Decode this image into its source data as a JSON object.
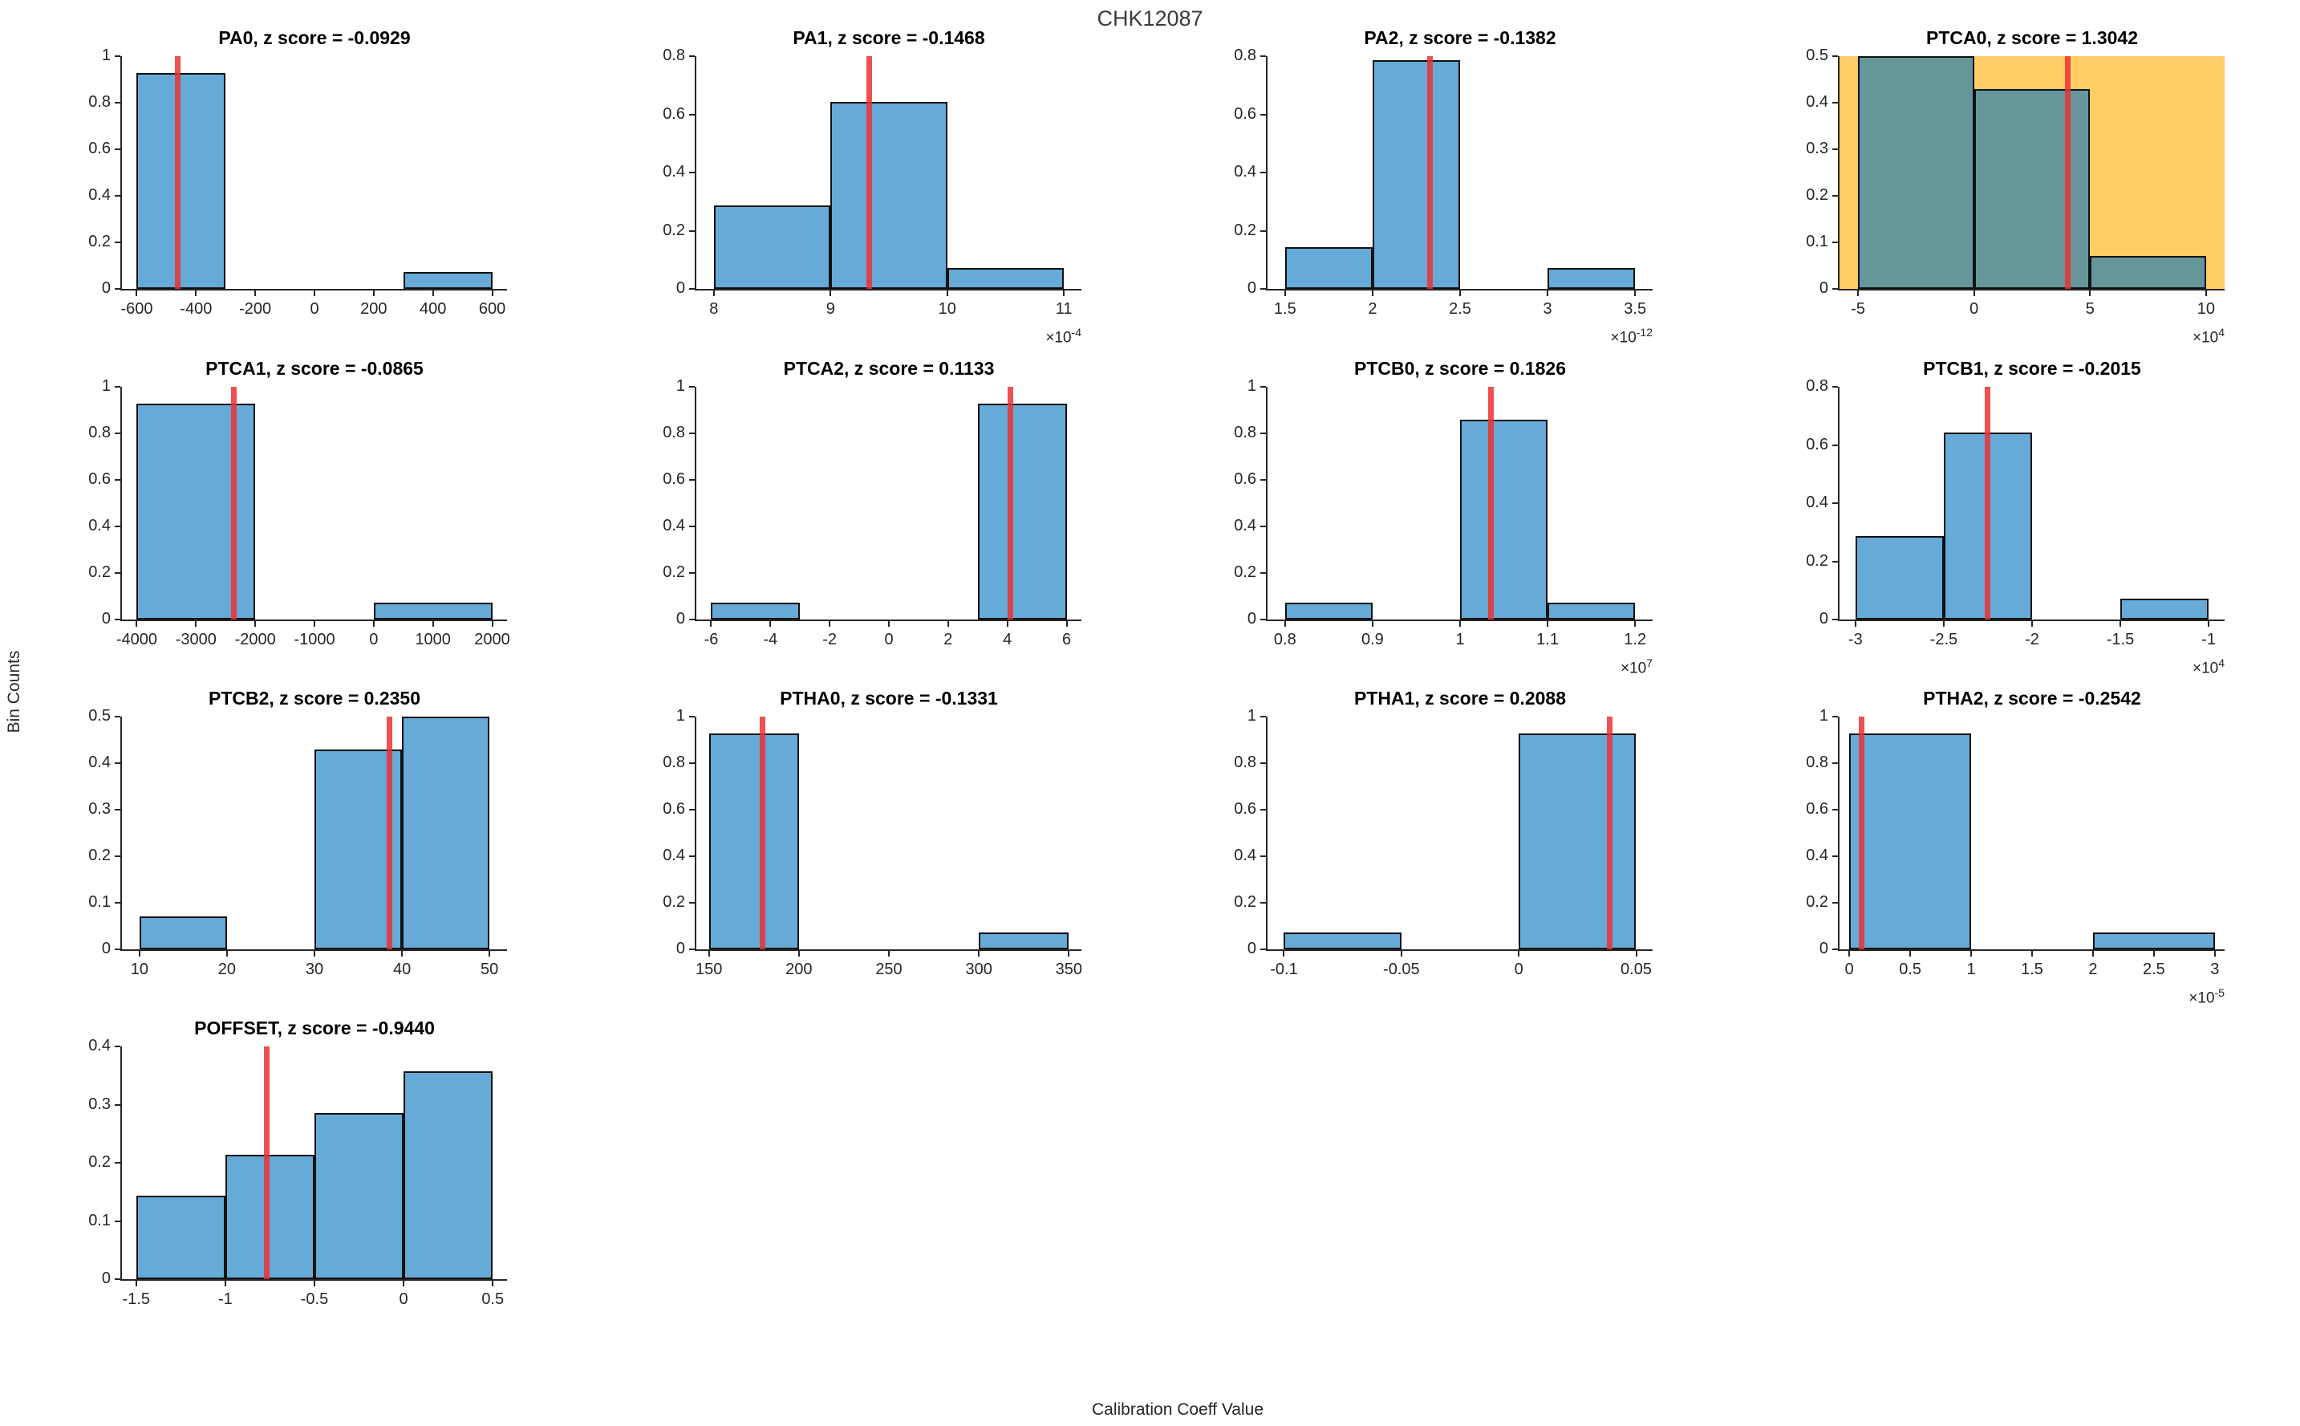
{
  "figure": {
    "title": "CHK12087",
    "xlabel": "Calibration Coeff Value",
    "ylabel": "Bin Counts"
  },
  "colors": {
    "bar_fill": "rgba(0,114,189,0.6)",
    "bar_edge": "#111111",
    "red_line": "rgba(235,50,50,0.85)",
    "highlight_bg": "#FFCC66",
    "axis": "#262626"
  },
  "chart_data": [
    {
      "type": "bar",
      "name": "PA0",
      "title": "PA0, z score = -0.0929",
      "z_score": -0.0929,
      "xlim": [
        -650,
        650
      ],
      "ylim": [
        0,
        1
      ],
      "xticks": [
        -600,
        -400,
        -200,
        0,
        200,
        400,
        600
      ],
      "xtick_labels": [
        "-600",
        "-400",
        "-200",
        "0",
        "200",
        "400",
        "600"
      ],
      "yticks": [
        0,
        0.2,
        0.4,
        0.6,
        0.8,
        1
      ],
      "ytick_labels": [
        "0",
        "0.2",
        "0.4",
        "0.6",
        "0.8",
        "1"
      ],
      "bins": [
        {
          "x0": -600,
          "x1": -300,
          "h": 0.9286
        },
        {
          "x0": 300,
          "x1": 600,
          "h": 0.0714
        }
      ],
      "red_line_x": -462,
      "exponent": null,
      "highlighted": false
    },
    {
      "type": "bar",
      "name": "PA1",
      "title": "PA1, z score = -0.1468",
      "z_score": -0.1468,
      "xlim": [
        7.85,
        11.15
      ],
      "ylim": [
        0,
        0.8
      ],
      "xticks": [
        8,
        9,
        10,
        11
      ],
      "xtick_labels": [
        "8",
        "9",
        "10",
        "11"
      ],
      "yticks": [
        0,
        0.2,
        0.4,
        0.6,
        0.8
      ],
      "ytick_labels": [
        "0",
        "0.2",
        "0.4",
        "0.6",
        "0.8"
      ],
      "bins": [
        {
          "x0": 8,
          "x1": 9,
          "h": 0.2857
        },
        {
          "x0": 9,
          "x1": 10,
          "h": 0.6429
        },
        {
          "x0": 10,
          "x1": 11,
          "h": 0.0714
        }
      ],
      "red_line_x": 9.33,
      "exponent": "-4",
      "highlighted": false
    },
    {
      "type": "bar",
      "name": "PA2",
      "title": "PA2, z score = -0.1382",
      "z_score": -0.1382,
      "xlim": [
        1.4,
        3.6
      ],
      "ylim": [
        0,
        0.8
      ],
      "xticks": [
        1.5,
        2,
        2.5,
        3,
        3.5
      ],
      "xtick_labels": [
        "1.5",
        "2",
        "2.5",
        "3",
        "3.5"
      ],
      "yticks": [
        0,
        0.2,
        0.4,
        0.6,
        0.8
      ],
      "ytick_labels": [
        "0",
        "0.2",
        "0.4",
        "0.6",
        "0.8"
      ],
      "bins": [
        {
          "x0": 1.5,
          "x1": 2,
          "h": 0.1429
        },
        {
          "x0": 2,
          "x1": 2.5,
          "h": 0.7857
        },
        {
          "x0": 3,
          "x1": 3.5,
          "h": 0.0714
        }
      ],
      "red_line_x": 2.33,
      "exponent": "-12",
      "highlighted": false
    },
    {
      "type": "bar",
      "name": "PTCA0",
      "title": "PTCA0, z score = 1.3042",
      "z_score": 1.3042,
      "xlim": [
        -5.8,
        10.8
      ],
      "ylim": [
        0,
        0.5
      ],
      "xticks": [
        -5,
        0,
        5,
        10
      ],
      "xtick_labels": [
        "-5",
        "0",
        "5",
        "10"
      ],
      "yticks": [
        0,
        0.1,
        0.2,
        0.3,
        0.4,
        0.5
      ],
      "ytick_labels": [
        "0",
        "0.1",
        "0.2",
        "0.3",
        "0.4",
        "0.5"
      ],
      "bins": [
        {
          "x0": -5,
          "x1": 0,
          "h": 0.5
        },
        {
          "x0": 0,
          "x1": 5,
          "h": 0.4286
        },
        {
          "x0": 5,
          "x1": 10,
          "h": 0.0714
        }
      ],
      "red_line_x": 4.05,
      "exponent": "4",
      "highlighted": true
    },
    {
      "type": "bar",
      "name": "PTCA1",
      "title": "PTCA1, z score = -0.0865",
      "z_score": -0.0865,
      "xlim": [
        -4250,
        2250
      ],
      "ylim": [
        0,
        1
      ],
      "xticks": [
        -4000,
        -3000,
        -2000,
        -1000,
        0,
        1000,
        2000
      ],
      "xtick_labels": [
        "-4000",
        "-3000",
        "-2000",
        "-1000",
        "0",
        "1000",
        "2000"
      ],
      "yticks": [
        0,
        0.2,
        0.4,
        0.6,
        0.8,
        1
      ],
      "ytick_labels": [
        "0",
        "0.2",
        "0.4",
        "0.6",
        "0.8",
        "1"
      ],
      "bins": [
        {
          "x0": -4000,
          "x1": -2000,
          "h": 0.9286
        },
        {
          "x0": 0,
          "x1": 2000,
          "h": 0.0714
        }
      ],
      "red_line_x": -2360,
      "exponent": null,
      "highlighted": false
    },
    {
      "type": "bar",
      "name": "PTCA2",
      "title": "PTCA2, z score = 0.1133",
      "z_score": 0.1133,
      "xlim": [
        -6.5,
        6.5
      ],
      "ylim": [
        0,
        1
      ],
      "xticks": [
        -6,
        -4,
        -2,
        0,
        2,
        4,
        6
      ],
      "xtick_labels": [
        "-6",
        "-4",
        "-2",
        "0",
        "2",
        "4",
        "6"
      ],
      "yticks": [
        0,
        0.2,
        0.4,
        0.6,
        0.8,
        1
      ],
      "ytick_labels": [
        "0",
        "0.2",
        "0.4",
        "0.6",
        "0.8",
        "1"
      ],
      "bins": [
        {
          "x0": -6,
          "x1": -3,
          "h": 0.0714
        },
        {
          "x0": 3,
          "x1": 6,
          "h": 0.9286
        }
      ],
      "red_line_x": 4.1,
      "exponent": null,
      "highlighted": false
    },
    {
      "type": "bar",
      "name": "PTCB0",
      "title": "PTCB0, z score = 0.1826",
      "z_score": 0.1826,
      "xlim": [
        0.78,
        1.22
      ],
      "ylim": [
        0,
        1
      ],
      "xticks": [
        0.8,
        0.9,
        1,
        1.1,
        1.2
      ],
      "xtick_labels": [
        "0.8",
        "0.9",
        "1",
        "1.1",
        "1.2"
      ],
      "yticks": [
        0,
        0.2,
        0.4,
        0.6,
        0.8,
        1
      ],
      "ytick_labels": [
        "0",
        "0.2",
        "0.4",
        "0.6",
        "0.8",
        "1"
      ],
      "bins": [
        {
          "x0": 0.8,
          "x1": 0.9,
          "h": 0.0714
        },
        {
          "x0": 1,
          "x1": 1.1,
          "h": 0.8571
        },
        {
          "x0": 1.1,
          "x1": 1.2,
          "h": 0.0714
        }
      ],
      "red_line_x": 1.035,
      "exponent": "7",
      "highlighted": false
    },
    {
      "type": "bar",
      "name": "PTCB1",
      "title": "PTCB1, z score = -0.2015",
      "z_score": -0.2015,
      "xlim": [
        -3.09,
        -0.91
      ],
      "ylim": [
        0,
        0.8
      ],
      "xticks": [
        -3,
        -2.5,
        -2,
        -1.5,
        -1
      ],
      "xtick_labels": [
        "-3",
        "-2.5",
        "-2",
        "-1.5",
        "-1"
      ],
      "yticks": [
        0,
        0.2,
        0.4,
        0.6,
        0.8
      ],
      "ytick_labels": [
        "0",
        "0.2",
        "0.4",
        "0.6",
        "0.8"
      ],
      "bins": [
        {
          "x0": -3,
          "x1": -2.5,
          "h": 0.2857
        },
        {
          "x0": -2.5,
          "x1": -2,
          "h": 0.6429
        },
        {
          "x0": -1.5,
          "x1": -1,
          "h": 0.0714
        }
      ],
      "red_line_x": -2.25,
      "exponent": "4",
      "highlighted": false
    },
    {
      "type": "bar",
      "name": "PTCB2",
      "title": "PTCB2, z score = 0.2350",
      "z_score": 0.235,
      "xlim": [
        8,
        52
      ],
      "ylim": [
        0,
        0.5
      ],
      "xticks": [
        10,
        20,
        30,
        40,
        50
      ],
      "xtick_labels": [
        "10",
        "20",
        "30",
        "40",
        "50"
      ],
      "yticks": [
        0,
        0.1,
        0.2,
        0.3,
        0.4,
        0.5
      ],
      "ytick_labels": [
        "0",
        "0.1",
        "0.2",
        "0.3",
        "0.4",
        "0.5"
      ],
      "bins": [
        {
          "x0": 10,
          "x1": 20,
          "h": 0.0714
        },
        {
          "x0": 30,
          "x1": 40,
          "h": 0.4286
        },
        {
          "x0": 40,
          "x1": 50,
          "h": 0.5
        }
      ],
      "red_line_x": 38.6,
      "exponent": null,
      "highlighted": false
    },
    {
      "type": "bar",
      "name": "PTHA0",
      "title": "PTHA0, z score = -0.1331",
      "z_score": -0.1331,
      "xlim": [
        143,
        357
      ],
      "ylim": [
        0,
        1
      ],
      "xticks": [
        150,
        200,
        250,
        300,
        350
      ],
      "xtick_labels": [
        "150",
        "200",
        "250",
        "300",
        "350"
      ],
      "yticks": [
        0,
        0.2,
        0.4,
        0.6,
        0.8,
        1
      ],
      "ytick_labels": [
        "0",
        "0.2",
        "0.4",
        "0.6",
        "0.8",
        "1"
      ],
      "bins": [
        {
          "x0": 150,
          "x1": 200,
          "h": 0.9286
        },
        {
          "x0": 300,
          "x1": 350,
          "h": 0.0714
        }
      ],
      "red_line_x": 180,
      "exponent": null,
      "highlighted": false
    },
    {
      "type": "bar",
      "name": "PTHA1",
      "title": "PTHA1, z score = 0.2088",
      "z_score": 0.2088,
      "xlim": [
        -0.107,
        0.057
      ],
      "ylim": [
        0,
        1
      ],
      "xticks": [
        -0.1,
        -0.05,
        0,
        0.05
      ],
      "xtick_labels": [
        "-0.1",
        "-0.05",
        "0",
        "0.05"
      ],
      "yticks": [
        0,
        0.2,
        0.4,
        0.6,
        0.8,
        1
      ],
      "ytick_labels": [
        "0",
        "0.2",
        "0.4",
        "0.6",
        "0.8",
        "1"
      ],
      "bins": [
        {
          "x0": -0.1,
          "x1": -0.05,
          "h": 0.0714
        },
        {
          "x0": 0,
          "x1": 0.05,
          "h": 0.9286
        }
      ],
      "red_line_x": 0.0386,
      "exponent": null,
      "highlighted": false
    },
    {
      "type": "bar",
      "name": "PTHA2",
      "title": "PTHA2, z score = -0.2542",
      "z_score": -0.2542,
      "xlim": [
        -0.08,
        3.08
      ],
      "ylim": [
        0,
        1
      ],
      "xticks": [
        0,
        0.5,
        1,
        1.5,
        2,
        2.5,
        3
      ],
      "xtick_labels": [
        "0",
        "0.5",
        "1",
        "1.5",
        "2",
        "2.5",
        "3"
      ],
      "yticks": [
        0,
        0.2,
        0.4,
        0.6,
        0.8,
        1
      ],
      "ytick_labels": [
        "0",
        "0.2",
        "0.4",
        "0.6",
        "0.8",
        "1"
      ],
      "bins": [
        {
          "x0": 0,
          "x1": 1,
          "h": 0.9286
        },
        {
          "x0": 2,
          "x1": 3,
          "h": 0.0714
        }
      ],
      "red_line_x": 0.1,
      "exponent": "-5",
      "highlighted": false
    },
    {
      "type": "bar",
      "name": "POFFSET",
      "title": "POFFSET, z score = -0.9440",
      "z_score": -0.944,
      "xlim": [
        -1.58,
        0.58
      ],
      "ylim": [
        0,
        0.4
      ],
      "xticks": [
        -1.5,
        -1,
        -0.5,
        0,
        0.5
      ],
      "xtick_labels": [
        "-1.5",
        "-1",
        "-0.5",
        "0",
        "0.5"
      ],
      "yticks": [
        0,
        0.1,
        0.2,
        0.3,
        0.4
      ],
      "ytick_labels": [
        "0",
        "0.1",
        "0.2",
        "0.3",
        "0.4"
      ],
      "bins": [
        {
          "x0": -1.5,
          "x1": -1,
          "h": 0.1429
        },
        {
          "x0": -1,
          "x1": -0.5,
          "h": 0.2143
        },
        {
          "x0": -0.5,
          "x1": 0,
          "h": 0.2857
        },
        {
          "x0": 0,
          "x1": 0.5,
          "h": 0.3571
        }
      ],
      "red_line_x": -0.77,
      "exponent": null,
      "highlighted": false
    }
  ]
}
